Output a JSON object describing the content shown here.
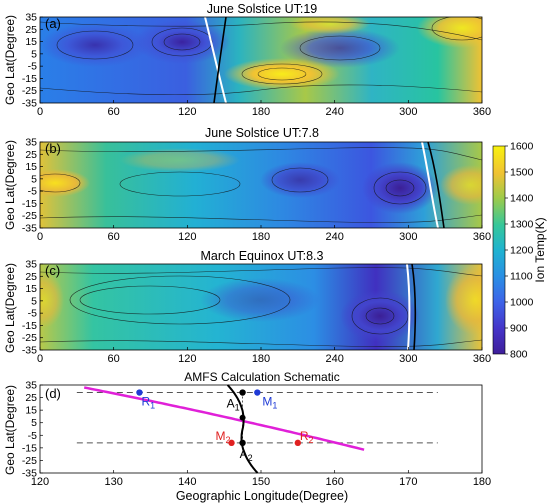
{
  "chart_data": [
    {
      "type": "heatmap",
      "panel_label": "(a)",
      "title": "June Solstice UT:19",
      "ylabel": "Geo Lat(Degree)",
      "xlim": [
        0,
        360
      ],
      "ylim": [
        -35,
        35
      ],
      "xticks": [
        "0",
        "60",
        "120",
        "180",
        "240",
        "300",
        "360"
      ],
      "yticks": [
        "35",
        "25",
        "15",
        "5",
        "-5",
        "-15",
        "-25",
        "-35"
      ],
      "description_values": "ion temperature field (K); cool minimum near lon 120 lat 10, warm maximum near lon 200 lat -10"
    },
    {
      "type": "heatmap",
      "panel_label": "(b)",
      "title": "June Solstice UT:7.8",
      "ylabel": "Geo Lat(Degree)",
      "xlim": [
        0,
        360
      ],
      "ylim": [
        -35,
        35
      ],
      "xticks": [
        "0",
        "60",
        "120",
        "180",
        "240",
        "300",
        "360"
      ],
      "yticks": [
        "35",
        "25",
        "15",
        "5",
        "-5",
        "-15",
        "-25",
        "-35"
      ]
    },
    {
      "type": "heatmap",
      "panel_label": "(c)",
      "title": "March Equinox UT:8.3",
      "ylabel": "Geo Lat(Degree)",
      "xlim": [
        0,
        360
      ],
      "ylim": [
        -35,
        35
      ],
      "xticks": [
        "0",
        "60",
        "120",
        "180",
        "240",
        "300",
        "360"
      ],
      "yticks": [
        "35",
        "25",
        "15",
        "5",
        "-5",
        "-15",
        "-25",
        "-35"
      ]
    },
    {
      "type": "line",
      "panel_label": "(d)",
      "title": "AMFS Calculation Schematic",
      "xlabel": "Geographic Longitude(Degree)",
      "ylabel": "Geo Lat(Degree)",
      "xlim": [
        120,
        180
      ],
      "ylim": [
        -35,
        35
      ],
      "xticks": [
        "120",
        "130",
        "140",
        "150",
        "160",
        "170",
        "180"
      ],
      "yticks": [
        "35",
        "25",
        "15",
        "5",
        "-5",
        "-15",
        "-25",
        "-35"
      ],
      "points": [
        {
          "label": "R",
          "sub": "1",
          "x": 133.5,
          "y": 29,
          "color": "#1f3bd6"
        },
        {
          "label": "M",
          "sub": "1",
          "x": 149.5,
          "y": 29,
          "color": "#1f3bd6"
        },
        {
          "label": "A",
          "sub": "1",
          "x": 147.5,
          "y": 29,
          "color": "#000000"
        },
        {
          "label": "M",
          "sub": "2",
          "x": 146,
          "y": -11,
          "color": "#e02020"
        },
        {
          "label": "R",
          "sub": "2",
          "x": 155,
          "y": -11,
          "color": "#e02020"
        },
        {
          "label": "A",
          "sub": "2",
          "x": 147.5,
          "y": -11,
          "color": "#000000"
        }
      ]
    }
  ],
  "colorbar": {
    "label": "Ion Temp(K)",
    "ticks": [
      "1600",
      "1500",
      "1400",
      "1300",
      "1200",
      "1100",
      "1000",
      "900",
      "800"
    ],
    "min": 800,
    "max": 1600
  }
}
